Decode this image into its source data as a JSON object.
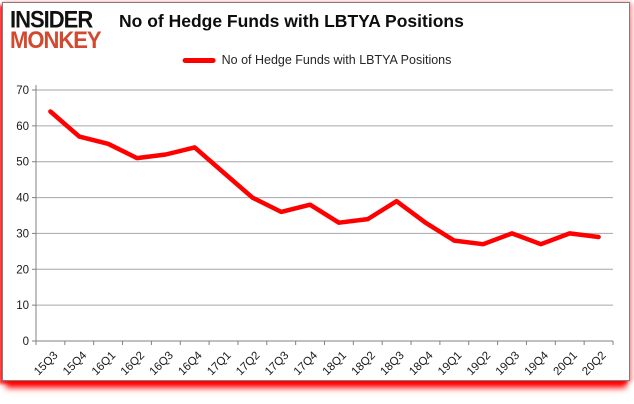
{
  "logo": {
    "line1": "INSIDER",
    "line2": "MONKEY"
  },
  "title": "No of Hedge Funds with LBTYA Positions",
  "legend": {
    "label": "No of Hedge Funds with LBTYA Positions"
  },
  "colors": {
    "line": "#ff0000",
    "logo_red": "#d2492f",
    "grid": "#a6a6a6",
    "axis": "#808080",
    "frame_glow": "#ff0000",
    "text": "#1a1a1a"
  },
  "chart_data": {
    "type": "line",
    "title": "No of Hedge Funds with LBTYA Positions",
    "series": [
      {
        "name": "No of Hedge Funds with LBTYA Positions",
        "values": [
          64,
          57,
          55,
          51,
          52,
          54,
          47,
          40,
          36,
          38,
          33,
          34,
          39,
          33,
          28,
          27,
          30,
          27,
          30,
          29
        ]
      }
    ],
    "categories": [
      "15Q3",
      "15Q4",
      "16Q1",
      "16Q2",
      "16Q3",
      "16Q4",
      "17Q1",
      "17Q2",
      "17Q3",
      "17Q4",
      "18Q1",
      "18Q2",
      "18Q3",
      "18Q4",
      "19Q1",
      "19Q2",
      "19Q3",
      "19Q4",
      "20Q1",
      "20Q2"
    ],
    "xlabel": "",
    "ylabel": "",
    "ylim": [
      0,
      70
    ],
    "yticks": [
      0,
      10,
      20,
      30,
      40,
      50,
      60,
      70
    ],
    "grid": "horizontal",
    "legend_position": "top-center",
    "line_color": "#ff0000"
  }
}
